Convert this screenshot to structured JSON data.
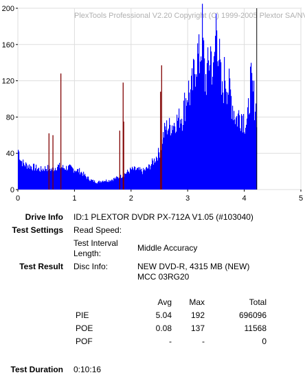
{
  "chart_data": {
    "type": "bar",
    "title": "PlexTools Professional V2.20 Copyright (C) 1999-2005 Plextor SA/NV",
    "xlim": [
      0,
      5
    ],
    "ylim": [
      0,
      200
    ],
    "x_ticks": [
      "0",
      "1",
      "2",
      "3",
      "4",
      "5"
    ],
    "y_ticks": [
      "0",
      "40",
      "80",
      "120",
      "160",
      "200"
    ],
    "grid": true,
    "end_marker_x": 4.22,
    "series": [
      {
        "key": "pie",
        "color": "#0000ff",
        "x": [
          0,
          0.05,
          0.1,
          0.2,
          0.3,
          0.4,
          0.5,
          0.6,
          0.7,
          0.8,
          0.9,
          1.0,
          1.1,
          1.2,
          1.3,
          1.4,
          1.5,
          1.6,
          1.7,
          1.8,
          1.9,
          2.0,
          2.1,
          2.2,
          2.3,
          2.4,
          2.5,
          2.55,
          2.6,
          2.7,
          2.8,
          2.9,
          2.95,
          3.0,
          3.05,
          3.1,
          3.15,
          3.2,
          3.25,
          3.3,
          3.35,
          3.4,
          3.45,
          3.5,
          3.55,
          3.6,
          3.65,
          3.7,
          3.75,
          3.8,
          3.85,
          3.9,
          3.95,
          4.0,
          4.05,
          4.1,
          4.15,
          4.2,
          4.22
        ],
        "values": [
          44,
          32,
          28,
          26,
          24,
          22,
          24,
          22,
          26,
          24,
          24,
          22,
          20,
          14,
          10,
          8,
          10,
          10,
          12,
          14,
          18,
          22,
          22,
          20,
          24,
          32,
          42,
          56,
          68,
          70,
          76,
          82,
          96,
          110,
          104,
          122,
          150,
          140,
          175,
          120,
          130,
          155,
          120,
          192,
          145,
          100,
          130,
          115,
          105,
          90,
          78,
          82,
          84,
          76,
          72,
          118,
          105,
          90,
          82
        ]
      },
      {
        "key": "poe",
        "color": "#800000",
        "x": [
          0.55,
          0.62,
          0.76,
          1.8,
          1.86,
          1.87,
          2.52,
          2.54
        ],
        "values": [
          62,
          60,
          128,
          65,
          118,
          75,
          108,
          137
        ]
      }
    ]
  },
  "info": {
    "drive_info_label": "Drive Info",
    "drive_info_value": "ID:1 PLEXTOR DVDR PX-712A V1.05 (#103040)",
    "test_settings_label": "Test Settings",
    "read_speed_label": "Read Speed:",
    "test_interval_label_1": "Test Interval",
    "test_interval_label_2": "Length:",
    "test_interval_value": "Middle Accuracy",
    "test_result_label": "Test Result",
    "disc_info_label": "Disc Info:",
    "disc_info_value_1": "NEW DVD-R, 4315 MB (NEW)",
    "disc_info_value_2": "MCC 03RG20",
    "test_duration_label": "Test Duration",
    "test_duration_value": "0:10:16"
  },
  "results": {
    "headers": {
      "avg": "Avg",
      "max": "Max",
      "total": "Total"
    },
    "rows": [
      {
        "name": "PIE",
        "avg": "5.04",
        "max": "192",
        "total": "696096"
      },
      {
        "name": "POE",
        "avg": "0.08",
        "max": "137",
        "total": "11568"
      },
      {
        "name": "POF",
        "avg": "-",
        "max": "-",
        "total": "0"
      }
    ]
  }
}
